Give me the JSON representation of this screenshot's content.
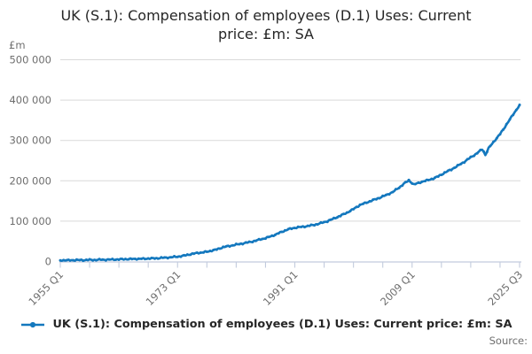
{
  "window": {
    "background": "#ffffff"
  },
  "chart_data": {
    "type": "line",
    "title": "UK (S.1): Compensation of employees (D.1) Uses: Current price: £m: SA",
    "title_display": "UK (S.1): Compensation of employees (D.1) Uses: Current\nprice: £m: SA",
    "y_axis_unit_label": "£m",
    "ylim": [
      0,
      500000
    ],
    "grid": "horizontal",
    "legend_position": "bottom",
    "y_ticks": [
      {
        "value": 0,
        "label": "0"
      },
      {
        "value": 100000,
        "label": "100 000"
      },
      {
        "value": 200000,
        "label": "200 000"
      },
      {
        "value": 300000,
        "label": "300 000"
      },
      {
        "value": 400000,
        "label": "400 000"
      },
      {
        "value": 500000,
        "label": "500 000"
      }
    ],
    "x_axis": {
      "frequency": "quarterly",
      "start_label": "1955 Q1",
      "end_label": "2025 Q3",
      "total_quarters": 282,
      "minor_tick_every_quarters": 18,
      "labeled_ticks": [
        {
          "q": 0,
          "label": "1955 Q1"
        },
        {
          "q": 72,
          "label": "1973 Q1"
        },
        {
          "q": 144,
          "label": "1991 Q1"
        },
        {
          "q": 216,
          "label": "2009 Q1"
        },
        {
          "q": 282,
          "label": "2025 Q3"
        }
      ]
    },
    "series": [
      {
        "name": "UK (S.1): Compensation of employees (D.1) Uses: Current price: £m: SA",
        "color": "#1478be",
        "points_year_value": [
          [
            1955.0,
            2900
          ],
          [
            1956.0,
            3100
          ],
          [
            1957.0,
            3350
          ],
          [
            1958.0,
            3550
          ],
          [
            1959.0,
            3750
          ],
          [
            1960.0,
            4050
          ],
          [
            1961.0,
            4400
          ],
          [
            1962.0,
            4650
          ],
          [
            1963.0,
            4950
          ],
          [
            1964.0,
            5400
          ],
          [
            1965.0,
            5850
          ],
          [
            1966.0,
            6250
          ],
          [
            1967.0,
            6550
          ],
          [
            1968.0,
            7050
          ],
          [
            1969.0,
            7600
          ],
          [
            1970.0,
            8400
          ],
          [
            1971.0,
            9400
          ],
          [
            1972.0,
            10500
          ],
          [
            1973.0,
            12000
          ],
          [
            1974.0,
            14500
          ],
          [
            1975.0,
            18200
          ],
          [
            1976.0,
            20900
          ],
          [
            1977.0,
            22900
          ],
          [
            1978.0,
            25900
          ],
          [
            1979.0,
            30000
          ],
          [
            1980.0,
            35500
          ],
          [
            1981.0,
            38800
          ],
          [
            1982.0,
            41800
          ],
          [
            1983.0,
            44800
          ],
          [
            1984.0,
            47800
          ],
          [
            1985.0,
            51800
          ],
          [
            1986.0,
            55800
          ],
          [
            1987.0,
            60500
          ],
          [
            1988.0,
            66500
          ],
          [
            1989.0,
            73500
          ],
          [
            1990.0,
            80000
          ],
          [
            1991.0,
            83500
          ],
          [
            1992.0,
            85800
          ],
          [
            1993.0,
            88000
          ],
          [
            1994.0,
            91000
          ],
          [
            1995.0,
            95000
          ],
          [
            1996.0,
            100000
          ],
          [
            1997.0,
            106500
          ],
          [
            1998.0,
            113500
          ],
          [
            1999.0,
            121000
          ],
          [
            2000.0,
            130000
          ],
          [
            2001.0,
            140000
          ],
          [
            2002.0,
            146000
          ],
          [
            2003.0,
            152000
          ],
          [
            2004.0,
            158000
          ],
          [
            2005.0,
            164500
          ],
          [
            2006.0,
            172000
          ],
          [
            2007.0,
            183000
          ],
          [
            2007.75,
            193000
          ],
          [
            2008.5,
            201000
          ],
          [
            2009.25,
            191000
          ],
          [
            2010.0,
            194500
          ],
          [
            2010.75,
            199000
          ],
          [
            2011.5,
            202000
          ],
          [
            2012.25,
            205500
          ],
          [
            2013.0,
            211000
          ],
          [
            2014.0,
            220000
          ],
          [
            2015.0,
            228000
          ],
          [
            2016.0,
            237000
          ],
          [
            2017.0,
            247000
          ],
          [
            2018.0,
            258000
          ],
          [
            2018.75,
            266000
          ],
          [
            2019.5,
            275000
          ],
          [
            2019.75,
            278000
          ],
          [
            2020.0,
            272000
          ],
          [
            2020.25,
            264000
          ],
          [
            2020.5,
            273000
          ],
          [
            2020.75,
            281000
          ],
          [
            2021.0,
            286000
          ],
          [
            2021.5,
            296000
          ],
          [
            2022.0,
            306000
          ],
          [
            2022.5,
            316000
          ],
          [
            2023.0,
            327000
          ],
          [
            2023.5,
            340000
          ],
          [
            2024.0,
            352000
          ],
          [
            2024.5,
            364000
          ],
          [
            2025.0,
            376000
          ],
          [
            2025.25,
            382000
          ],
          [
            2025.5,
            387000
          ]
        ]
      }
    ]
  },
  "footer": {
    "source_label": "Source:"
  },
  "colors": {
    "line": "#1478be",
    "grid": "#d9d9d9",
    "axis": "#c2cbdd",
    "tick_text": "#6e6e6e",
    "title_text": "#262626"
  }
}
